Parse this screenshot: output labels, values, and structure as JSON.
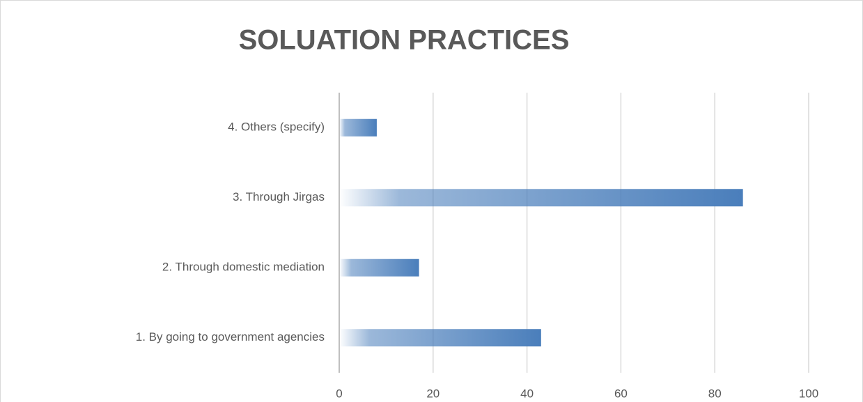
{
  "chart_data": {
    "type": "bar",
    "orientation": "horizontal",
    "title": "SOLUATION PRACTICES",
    "categories": [
      "1. By going to government agencies",
      "2. Through domestic mediation",
      "3. Through Jirgas",
      "4. Others (specify)"
    ],
    "values": [
      43,
      17,
      86,
      8
    ],
    "color": "#4a7ebb",
    "xlim": [
      0,
      100
    ],
    "xticks": [
      0,
      20,
      40,
      60,
      80,
      100
    ],
    "grid": true
  }
}
